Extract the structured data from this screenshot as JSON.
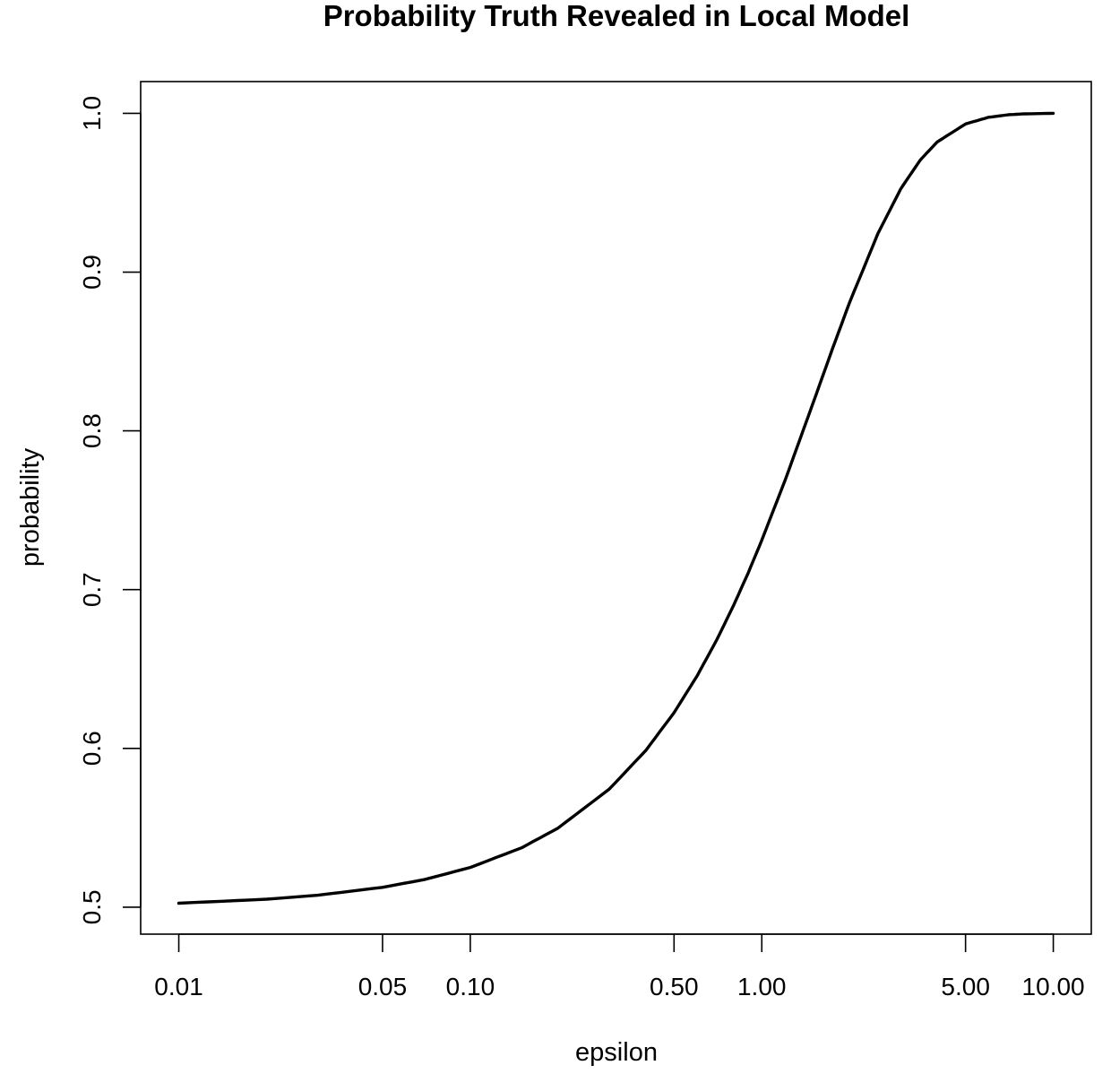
{
  "chart_data": {
    "type": "line",
    "title": "Probability Truth Revealed in Local Model",
    "xlabel": "epsilon",
    "ylabel": "probability",
    "x_scale": "log",
    "xlim": [
      0.0074,
      13.5
    ],
    "ylim": [
      0.483,
      1.02
    ],
    "x_ticks": [
      {
        "value": 0.01,
        "label": "0.01"
      },
      {
        "value": 0.05,
        "label": "0.05"
      },
      {
        "value": 0.1,
        "label": "0.10"
      },
      {
        "value": 0.5,
        "label": "0.50"
      },
      {
        "value": 1,
        "label": "1.00"
      },
      {
        "value": 5,
        "label": "5.00"
      },
      {
        "value": 10,
        "label": "10.00"
      }
    ],
    "y_ticks": [
      {
        "value": 0.5,
        "label": "0.5"
      },
      {
        "value": 0.6,
        "label": "0.6"
      },
      {
        "value": 0.7,
        "label": "0.7"
      },
      {
        "value": 0.8,
        "label": "0.8"
      },
      {
        "value": 0.9,
        "label": "0.9"
      },
      {
        "value": 1.0,
        "label": "1.0"
      }
    ],
    "grid": false,
    "legend": "none",
    "series": [
      {
        "color": "#000000",
        "x": [
          0.01,
          0.02,
          0.03,
          0.05,
          0.07,
          0.1,
          0.15,
          0.2,
          0.3,
          0.4,
          0.5,
          0.6,
          0.7,
          0.8,
          0.9,
          1.0,
          1.2,
          1.5,
          1.75,
          2.0,
          2.5,
          3.0,
          3.5,
          4.0,
          5.0,
          6.0,
          7.0,
          8.0,
          10.0
        ],
        "y": [
          0.5025,
          0.505,
          0.5075,
          0.5125,
          0.5175,
          0.525,
          0.5374,
          0.5498,
          0.5744,
          0.5987,
          0.6225,
          0.6457,
          0.6682,
          0.69,
          0.7109,
          0.7311,
          0.7685,
          0.8176,
          0.852,
          0.8808,
          0.9241,
          0.9526,
          0.9707,
          0.982,
          0.9933,
          0.9975,
          0.9991,
          0.9997,
          1.0
        ]
      }
    ]
  }
}
